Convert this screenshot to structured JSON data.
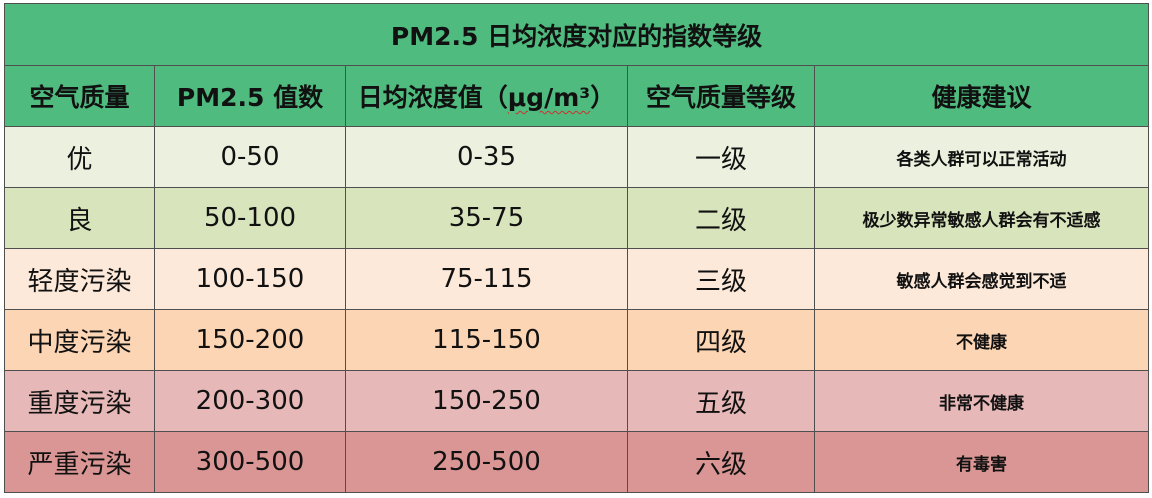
{
  "title": "PM2.5 日均浓度对应的指数等级",
  "headers": {
    "quality": "空气质量",
    "pm25_index": "PM2.5 值数",
    "daily_conc_prefix": "日均浓度值（",
    "daily_conc_unit": "μg/m³",
    "daily_conc_suffix": "）",
    "level": "空气质量等级",
    "advice": "健康建议"
  },
  "rows": [
    {
      "quality": "优",
      "index": "0-50",
      "conc": "0-35",
      "level": "一级",
      "advice": "各类人群可以正常活动",
      "color": "#ebf1de"
    },
    {
      "quality": "良",
      "index": "50-100",
      "conc": "35-75",
      "level": "二级",
      "advice": "极少数异常敏感人群会有不适感",
      "color": "#d8e4bc"
    },
    {
      "quality": "轻度污染",
      "index": "100-150",
      "conc": "75-115",
      "level": "三级",
      "advice": "敏感人群会感觉到不适",
      "color": "#fde9d9"
    },
    {
      "quality": "中度污染",
      "index": "150-200",
      "conc": "115-150",
      "level": "四级",
      "advice": "不健康",
      "color": "#fcd5b4"
    },
    {
      "quality": "重度污染",
      "index": "200-300",
      "conc": "150-250",
      "level": "五级",
      "advice": "非常不健康",
      "color": "#e6b8b7"
    },
    {
      "quality": "严重污染",
      "index": "300-500",
      "conc": "250-500",
      "level": "六级",
      "advice": "有毒害",
      "color": "#da9694"
    }
  ],
  "colors": {
    "header_green": "#4fbb7f",
    "border": "#4f4f4f"
  }
}
